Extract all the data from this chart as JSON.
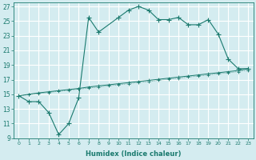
{
  "xlabel": "Humidex (Indice chaleur)",
  "bg_color": "#d4ecf0",
  "grid_color": "#ffffff",
  "line_color": "#1a7a6e",
  "xlim": [
    -0.5,
    23.5
  ],
  "ylim": [
    9,
    27.5
  ],
  "yticks": [
    9,
    11,
    13,
    15,
    17,
    19,
    21,
    23,
    25,
    27
  ],
  "xticks": [
    0,
    1,
    2,
    3,
    4,
    5,
    6,
    7,
    8,
    9,
    10,
    11,
    12,
    13,
    14,
    15,
    16,
    17,
    18,
    19,
    20,
    21,
    22,
    23
  ],
  "series1_x": [
    0,
    1,
    2,
    3,
    4,
    5,
    6,
    7,
    8,
    10,
    11,
    12,
    13,
    14,
    15,
    16,
    17,
    18,
    19,
    20,
    21,
    22,
    23
  ],
  "series1_y": [
    14.8,
    14.0,
    14.0,
    12.5,
    9.5,
    11.0,
    14.5,
    25.5,
    23.5,
    25.5,
    26.5,
    27.0,
    26.5,
    25.2,
    25.2,
    25.5,
    24.5,
    24.5,
    25.2,
    23.2,
    19.8,
    18.5,
    18.5
  ],
  "line2_x": [
    0,
    1,
    2,
    3,
    4,
    5,
    6,
    7,
    8,
    9,
    10,
    11,
    12,
    13,
    14,
    15,
    16,
    17,
    18,
    19,
    20,
    21,
    22,
    23
  ],
  "line2_y": [
    14.8,
    15.0,
    15.2,
    15.35,
    15.5,
    15.65,
    15.8,
    16.0,
    16.15,
    16.3,
    16.45,
    16.6,
    16.75,
    16.9,
    17.05,
    17.2,
    17.35,
    17.5,
    17.65,
    17.8,
    17.95,
    18.1,
    18.25,
    18.5
  ],
  "line3_x": [
    0,
    1,
    2,
    3,
    4,
    5,
    6,
    7,
    8,
    9,
    10,
    11,
    12,
    13,
    14,
    15,
    16,
    17,
    18,
    19,
    20,
    21,
    22,
    23
  ],
  "line3_y": [
    14.8,
    14.95,
    15.1,
    15.25,
    15.4,
    15.55,
    15.7,
    15.85,
    16.0,
    16.15,
    16.3,
    16.45,
    16.6,
    16.75,
    16.9,
    17.05,
    17.2,
    17.35,
    17.5,
    17.65,
    17.8,
    17.95,
    18.1,
    18.3
  ]
}
